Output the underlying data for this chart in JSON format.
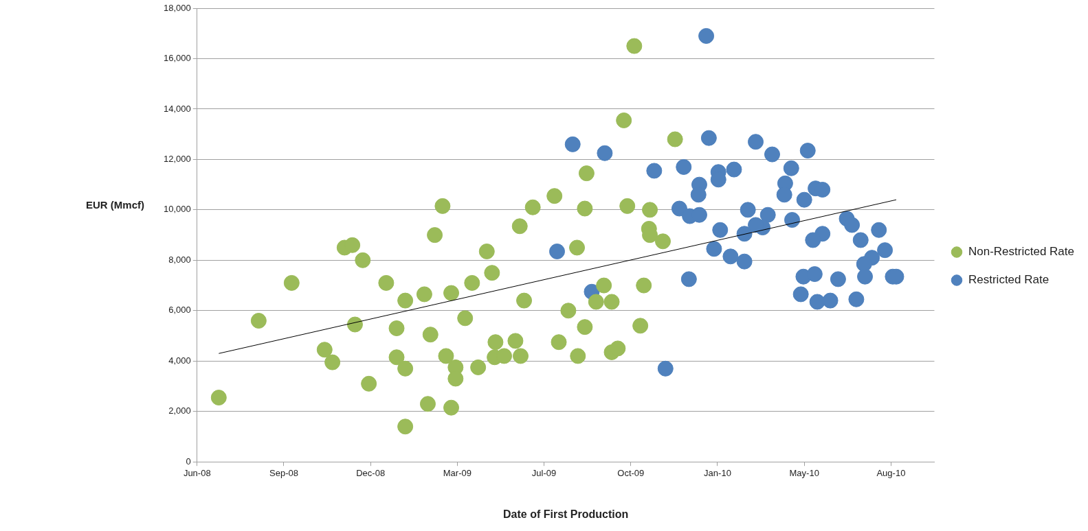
{
  "chart_data": {
    "type": "scatter",
    "xlabel": "Date of First Production",
    "ylabel": "EUR (Mmcf)",
    "xlim": [
      "2008-06-01",
      "2010-09-29"
    ],
    "xticks": [
      {
        "value": "2008-06-01",
        "label": "Jun-08"
      },
      {
        "value": "2008-09-09",
        "label": "Sep-08"
      },
      {
        "value": "2008-12-18",
        "label": "Dec-08"
      },
      {
        "value": "2009-03-28",
        "label": "Mar-09"
      },
      {
        "value": "2009-07-06",
        "label": "Jul-09"
      },
      {
        "value": "2009-10-14",
        "label": "Oct-09"
      },
      {
        "value": "2010-01-22",
        "label": "Jan-10"
      },
      {
        "value": "2010-05-02",
        "label": "May-10"
      },
      {
        "value": "2010-08-10",
        "label": "Aug-10"
      }
    ],
    "ylim": [
      0,
      18000
    ],
    "yticks": [
      {
        "value": 0,
        "label": "0"
      },
      {
        "value": 2000,
        "label": "2,000"
      },
      {
        "value": 4000,
        "label": "4,000"
      },
      {
        "value": 6000,
        "label": "6,000"
      },
      {
        "value": 8000,
        "label": "8,000"
      },
      {
        "value": 10000,
        "label": "10,000"
      },
      {
        "value": 12000,
        "label": "12,000"
      },
      {
        "value": 14000,
        "label": "14,000"
      },
      {
        "value": 16000,
        "label": "16,000"
      },
      {
        "value": 18000,
        "label": "18,000"
      }
    ],
    "grid": "y",
    "legend": "right",
    "marker": "circle",
    "series": [
      {
        "name": "Non-Restricted Rate",
        "color": "#9bbb59",
        "x": [
          "2008-06-26",
          "2008-08-11",
          "2008-09-18",
          "2008-10-26",
          "2008-11-04",
          "2008-11-18",
          "2008-11-27",
          "2008-11-30",
          "2008-12-09",
          "2008-12-16",
          "2009-01-05",
          "2009-01-17",
          "2009-01-17",
          "2009-01-27",
          "2009-01-27",
          "2009-01-27",
          "2009-02-18",
          "2009-02-22",
          "2009-02-25",
          "2009-03-02",
          "2009-03-11",
          "2009-03-15",
          "2009-03-21",
          "2009-03-21",
          "2009-03-26",
          "2009-03-26",
          "2009-04-06",
          "2009-04-14",
          "2009-04-21",
          "2009-05-01",
          "2009-05-07",
          "2009-05-11",
          "2009-05-10",
          "2009-05-21",
          "2009-06-03",
          "2009-06-09",
          "2009-06-08",
          "2009-06-13",
          "2009-06-23",
          "2009-07-18",
          "2009-07-23",
          "2009-08-03",
          "2009-08-13",
          "2009-08-14",
          "2009-08-24",
          "2009-08-22",
          "2009-08-22",
          "2009-09-04",
          "2009-09-13",
          "2009-09-22",
          "2009-09-22",
          "2009-09-29",
          "2009-10-06",
          "2009-10-10",
          "2009-10-18",
          "2009-10-25",
          "2009-10-29",
          "2009-11-05",
          "2009-11-04",
          "2009-11-05",
          "2009-11-20",
          "2009-12-04"
        ],
        "values": [
          2550,
          5600,
          7100,
          4450,
          3950,
          8500,
          8600,
          5450,
          8000,
          3100,
          7100,
          5300,
          4150,
          6400,
          3700,
          1400,
          6650,
          2300,
          5050,
          9000,
          10150,
          4200,
          6700,
          2150,
          3750,
          3300,
          5700,
          7100,
          3750,
          8350,
          7500,
          4750,
          4150,
          4200,
          4800,
          4200,
          9350,
          6400,
          10100,
          10550,
          4750,
          6000,
          8500,
          4200,
          11450,
          10050,
          5350,
          6350,
          7000,
          6350,
          4350,
          4500,
          13550,
          10150,
          16500,
          5400,
          7000,
          10000,
          9250,
          9000,
          8750,
          12800
        ]
      },
      {
        "name": "Restricted Rate",
        "color": "#4f81bd",
        "x": [
          "2010-01-09",
          "2009-08-08",
          "2009-09-14",
          "2010-01-12",
          "2010-03-07",
          "2010-03-26",
          "2010-05-06",
          "2009-11-10",
          "2009-12-14",
          "2010-01-23",
          "2010-01-23",
          "2010-02-10",
          "2010-01-01",
          "2009-12-31",
          "2010-04-17",
          "2010-04-10",
          "2010-04-09",
          "2009-12-09",
          "2009-12-21",
          "2010-01-01",
          "2010-02-26",
          "2010-03-21",
          "2010-05-02",
          "2010-05-15",
          "2010-05-23",
          "2010-04-18",
          "2010-01-25",
          "2010-02-22",
          "2010-03-15",
          "2010-03-07",
          "2010-06-20",
          "2010-06-26",
          "2010-07-27",
          "2010-05-23",
          "2010-05-12",
          "2010-07-06",
          "2009-07-21",
          "2010-01-18",
          "2010-02-06",
          "2010-02-22",
          "2010-08-03",
          "2010-07-19",
          "2010-07-10",
          "2010-07-11",
          "2010-08-12",
          "2010-08-16",
          "2009-08-30",
          "2009-12-20",
          "2010-05-01",
          "2010-05-14",
          "2010-06-10",
          "2010-04-28",
          "2010-05-17",
          "2010-06-01",
          "2010-07-01",
          "2009-11-23"
        ],
        "values": [
          16900,
          12600,
          12250,
          12850,
          12700,
          12200,
          12350,
          11550,
          11700,
          11500,
          11200,
          11600,
          11000,
          10600,
          11650,
          11050,
          10600,
          10050,
          9750,
          9800,
          10000,
          9800,
          10400,
          10850,
          10800,
          9600,
          9200,
          9050,
          9300,
          9400,
          9650,
          9400,
          9200,
          9050,
          8800,
          8800,
          8350,
          8450,
          8150,
          7950,
          8400,
          8100,
          7850,
          7350,
          7350,
          7350,
          6750,
          7250,
          7350,
          7450,
          7250,
          6650,
          6350,
          6400,
          6450,
          3700
        ]
      },
      {
        "type": "line",
        "color": "#000000",
        "marker": "none",
        "x": [
          "2008-06-26",
          "2010-08-16"
        ],
        "values": [
          4300,
          10400
        ]
      }
    ]
  }
}
